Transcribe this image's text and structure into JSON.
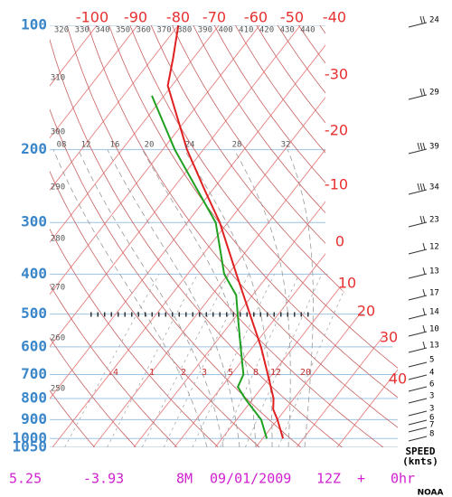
{
  "chart_data": {
    "type": "skewt",
    "pressure_ticks": [
      100,
      200,
      300,
      400,
      500,
      600,
      700,
      800,
      900,
      1000,
      1050
    ],
    "top_isotherm_labels": [
      -100,
      -90,
      -80,
      -70,
      -60,
      -50,
      -40
    ],
    "right_isotherm_labels": [
      -30,
      -20,
      -10,
      0,
      10,
      20,
      30,
      40
    ],
    "dry_adiabat_top_labels": [
      320,
      330,
      340,
      350,
      360,
      370,
      380,
      390,
      400,
      410,
      420,
      430,
      440
    ],
    "dry_adiabat_left_labels": [
      310,
      300,
      290,
      280,
      270,
      260,
      250
    ],
    "moist_adiabat_labels": [
      {
        "value": 8,
        "label": "08"
      },
      12,
      16,
      20,
      24,
      28,
      32
    ],
    "mixing_ratio_labels": [
      {
        "value": 0.4,
        "label": ".4"
      },
      1,
      2,
      3,
      5,
      8,
      12,
      20
    ],
    "temperature": {
      "color": "#e02020",
      "pressure": [
        100,
        120,
        140,
        200,
        250,
        300,
        400,
        500,
        600,
        700,
        800,
        850,
        900,
        1000
      ],
      "values": [
        -80,
        -75,
        -71,
        -54,
        -42,
        -32,
        -18,
        -7,
        2,
        9,
        15,
        17,
        20,
        25
      ]
    },
    "dewpoint": {
      "color": "#20a020",
      "pressure": [
        148,
        200,
        300,
        400,
        450,
        500,
        600,
        700,
        750,
        800,
        900,
        1000
      ],
      "values": [
        -73,
        -57,
        -33,
        -21,
        -14,
        -10,
        -3,
        3,
        4,
        8,
        16,
        21
      ]
    },
    "wind": {
      "speeds": [
        24,
        29,
        39,
        34,
        23,
        12,
        13,
        17,
        14,
        10,
        13,
        5,
        4,
        6,
        3,
        3,
        6,
        7,
        8
      ],
      "legend": "SPEED",
      "unit": "(knts)"
    },
    "footer": [
      "5.25",
      "-3.93",
      "8M",
      "09/01/2009",
      "12Z",
      "+",
      "0hr"
    ],
    "credit": "NOAA"
  }
}
